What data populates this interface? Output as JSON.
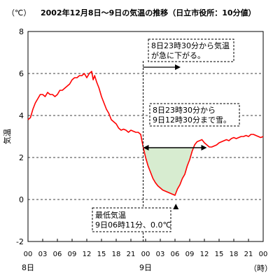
{
  "chart_data": {
    "type": "line",
    "title": "2002年12月8日～9日の気温の推移（日立市役所：10分値）",
    "unit_label": "（℃）",
    "ylabel": "気温",
    "xunit_label": "（時）",
    "ylim": [
      -2,
      8
    ],
    "yticks": [
      "-2",
      "0",
      "2",
      "4",
      "6",
      "8"
    ],
    "grid": "horizontal dashed",
    "xticks": [
      "00",
      "03",
      "06",
      "09",
      "12",
      "15",
      "18",
      "21",
      "00",
      "03",
      "06",
      "09",
      "12",
      "15",
      "18",
      "21",
      "00"
    ],
    "day_labels": [
      {
        "label": "8日",
        "hour": 0
      },
      {
        "label": "9日",
        "hour": 24
      }
    ],
    "x_range_hours": [
      0,
      48
    ],
    "series": [
      {
        "color": "#ff0000",
        "points": [
          [
            0,
            3.8
          ],
          [
            0.5,
            3.9
          ],
          [
            1,
            4.3
          ],
          [
            1.5,
            4.6
          ],
          [
            2,
            4.8
          ],
          [
            2.5,
            5.0
          ],
          [
            3,
            5.0
          ],
          [
            3.5,
            4.9
          ],
          [
            4,
            5.1
          ],
          [
            4.5,
            5.0
          ],
          [
            5,
            5.0
          ],
          [
            5.5,
            4.9
          ],
          [
            6,
            5.0
          ],
          [
            6.5,
            5.2
          ],
          [
            7,
            5.2
          ],
          [
            7.5,
            5.3
          ],
          [
            8,
            5.4
          ],
          [
            8.5,
            5.5
          ],
          [
            9,
            5.7
          ],
          [
            9.5,
            5.8
          ],
          [
            10,
            5.8
          ],
          [
            10.5,
            5.9
          ],
          [
            11,
            5.9
          ],
          [
            11.5,
            6.0
          ],
          [
            12,
            5.8
          ],
          [
            12.5,
            6.0
          ],
          [
            13,
            6.1
          ],
          [
            13.3,
            5.7
          ],
          [
            13.6,
            5.9
          ],
          [
            14,
            5.6
          ],
          [
            14.5,
            5.3
          ],
          [
            15,
            4.9
          ],
          [
            15.5,
            4.6
          ],
          [
            16,
            4.3
          ],
          [
            16.5,
            4.1
          ],
          [
            17,
            3.8
          ],
          [
            17.5,
            3.7
          ],
          [
            18,
            3.6
          ],
          [
            18.5,
            3.4
          ],
          [
            19,
            3.3
          ],
          [
            19.5,
            3.35
          ],
          [
            20,
            3.3
          ],
          [
            20.5,
            3.2
          ],
          [
            21,
            3.3
          ],
          [
            21.5,
            3.25
          ],
          [
            22,
            3.2
          ],
          [
            22.5,
            3.2
          ],
          [
            23,
            3.1
          ],
          [
            23.5,
            2.5
          ],
          [
            24,
            2.0
          ],
          [
            24.5,
            1.6
          ],
          [
            25,
            1.3
          ],
          [
            25.5,
            1.0
          ],
          [
            26,
            0.8
          ],
          [
            26.5,
            0.65
          ],
          [
            27,
            0.55
          ],
          [
            27.5,
            0.45
          ],
          [
            28,
            0.4
          ],
          [
            28.5,
            0.35
          ],
          [
            29,
            0.3
          ],
          [
            29.5,
            0.25
          ],
          [
            30,
            0.2
          ],
          [
            30.5,
            0.5
          ],
          [
            31,
            0.7
          ],
          [
            31.5,
            1.0
          ],
          [
            32,
            1.2
          ],
          [
            32.5,
            1.6
          ],
          [
            33,
            1.9
          ],
          [
            33.5,
            2.3
          ],
          [
            34,
            2.6
          ],
          [
            34.5,
            2.75
          ],
          [
            35,
            2.8
          ],
          [
            35.5,
            2.85
          ],
          [
            36,
            2.7
          ],
          [
            36.5,
            2.6
          ],
          [
            37,
            2.5
          ],
          [
            37.5,
            2.5
          ],
          [
            38,
            2.55
          ],
          [
            38.5,
            2.6
          ],
          [
            39,
            2.7
          ],
          [
            39.5,
            2.75
          ],
          [
            40,
            2.8
          ],
          [
            40.5,
            2.85
          ],
          [
            41,
            2.8
          ],
          [
            41.5,
            2.9
          ],
          [
            42,
            2.95
          ],
          [
            42.5,
            2.9
          ],
          [
            43,
            2.95
          ],
          [
            43.5,
            3.0
          ],
          [
            44,
            3.0
          ],
          [
            44.5,
            3.05
          ],
          [
            45,
            3.0
          ],
          [
            45.5,
            3.1
          ],
          [
            46,
            3.1
          ],
          [
            46.5,
            3.05
          ],
          [
            47,
            3.0
          ],
          [
            47.5,
            2.95
          ],
          [
            48,
            3.0
          ]
        ]
      }
    ],
    "annotations": [
      {
        "name": "sharp-drop-note",
        "lines": [
          "8日23時30分から気温",
          "が急に下がる。"
        ],
        "hour": 23.5
      },
      {
        "name": "snow-note",
        "lines": [
          "8日23時30分から",
          "9日12時30分まで雪。"
        ],
        "from_hour": 23.5,
        "to_hour": 36.5
      },
      {
        "name": "min-temp-note",
        "lines": [
          "最低気温",
          "9日06時11分、0.0℃"
        ],
        "hour": 30.18,
        "value": 0.0
      }
    ],
    "snow_shading": {
      "from_hour": 23.5,
      "to_hour": 36.5,
      "fill": "#d7ecd0"
    }
  }
}
